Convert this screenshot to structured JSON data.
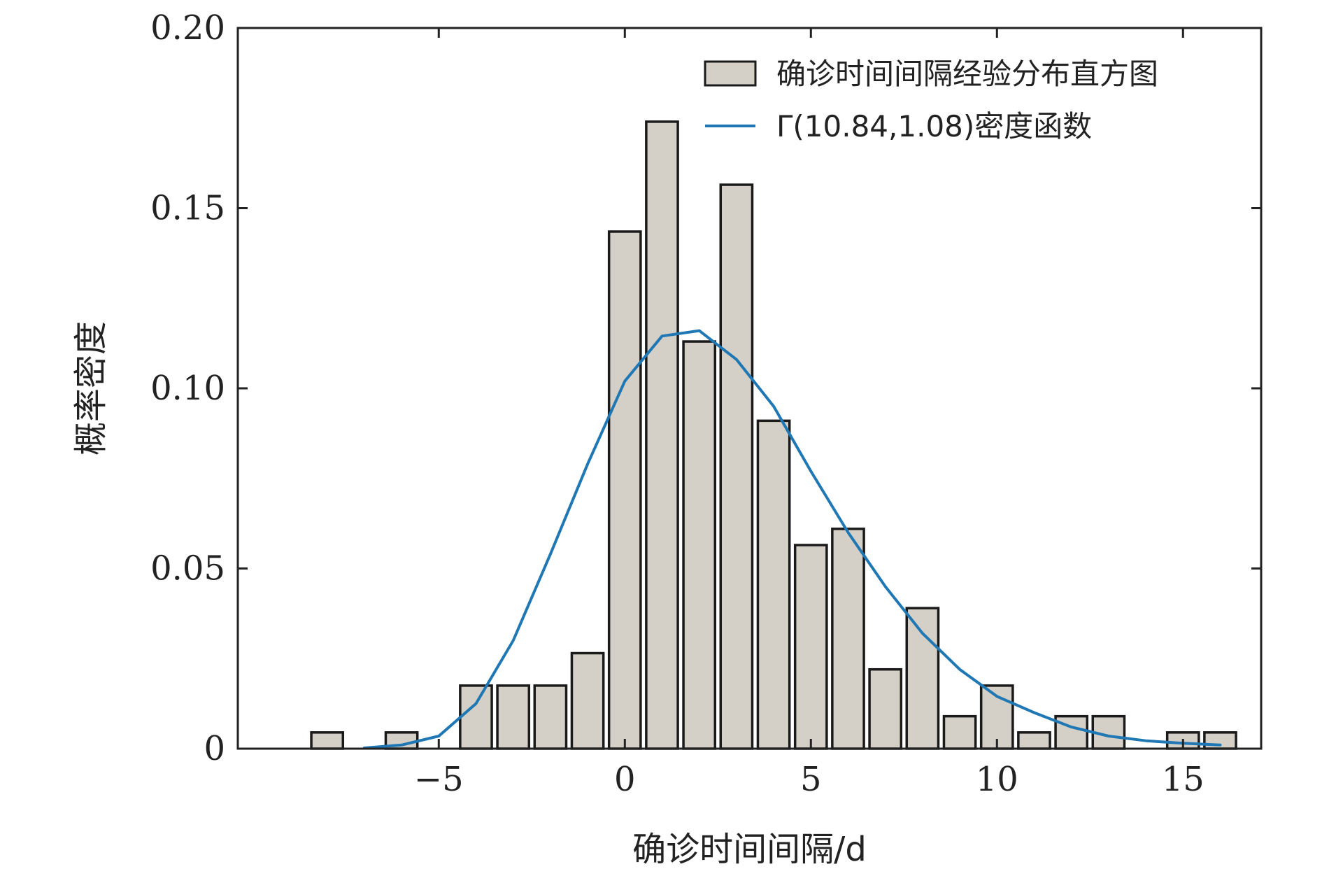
{
  "chart_data": {
    "type": "bar",
    "xlabel": "确诊时间间隔/d",
    "ylabel": "概率密度",
    "xlim": [
      -10.4,
      17.1
    ],
    "ylim": [
      0,
      0.2
    ],
    "xticks": [
      -5,
      0,
      5,
      10,
      15
    ],
    "xtick_labels": [
      "−5",
      "0",
      "5",
      "10",
      "15"
    ],
    "yticks": [
      0,
      0.05,
      0.1,
      0.15,
      0.2
    ],
    "ytick_labels": [
      "0",
      "0.05",
      "0.10",
      "0.15",
      "0.20"
    ],
    "grid": false,
    "legend_position": "top-right",
    "bar_width": 0.85,
    "colors": {
      "bar_fill": "#d4d0c8",
      "bar_edge": "#1a1a1a",
      "curve": "#1f77b4",
      "axis": "#222222"
    },
    "series": [
      {
        "kind": "bar",
        "name": "确诊时间间隔经验分布直方图",
        "x": [
          -8,
          -6,
          -4,
          -3,
          -2,
          -1,
          0,
          1,
          2,
          3,
          4,
          5,
          6,
          7,
          8,
          9,
          10,
          11,
          12,
          13,
          15,
          16
        ],
        "values": [
          0.0045,
          0.0045,
          0.0175,
          0.0175,
          0.0175,
          0.0265,
          0.1435,
          0.174,
          0.113,
          0.1565,
          0.091,
          0.0565,
          0.061,
          0.022,
          0.039,
          0.009,
          0.0175,
          0.0045,
          0.009,
          0.009,
          0.0045,
          0.0045
        ]
      },
      {
        "kind": "line",
        "name": "Γ(10.84,1.08)密度函数",
        "x": [
          -7,
          -6,
          -5,
          -4,
          -3,
          -2,
          -1,
          0,
          1,
          2,
          3,
          4,
          5,
          6,
          7,
          8,
          9,
          10,
          11,
          12,
          13,
          14,
          15,
          16
        ],
        "values": [
          0.0002,
          0.001,
          0.0035,
          0.0125,
          0.03,
          0.054,
          0.079,
          0.102,
          0.1145,
          0.116,
          0.108,
          0.095,
          0.077,
          0.06,
          0.045,
          0.032,
          0.022,
          0.0145,
          0.01,
          0.006,
          0.0035,
          0.0022,
          0.0015,
          0.001
        ]
      }
    ]
  }
}
